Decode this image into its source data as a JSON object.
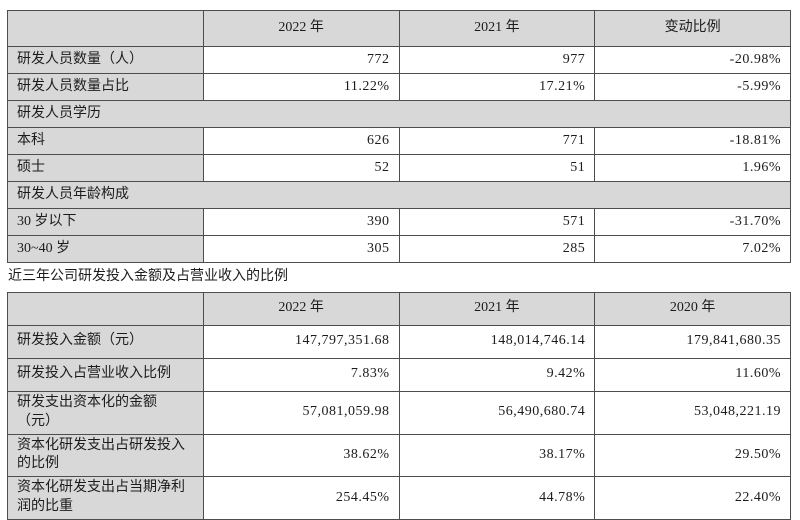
{
  "mid_title": "近三年公司研发投入金额及占营业收入的比例",
  "personnel_table": {
    "headers": [
      "",
      "2022 年",
      "2021 年",
      "变动比例"
    ],
    "rows": [
      {
        "label": "研发人员数量（人）",
        "y2022": "772",
        "y2021": "977",
        "change": "-20.98%"
      },
      {
        "label": "研发人员数量占比",
        "y2022": "11.22%",
        "y2021": "17.21%",
        "change": "-5.99%"
      },
      {
        "label": "研发人员学历"
      },
      {
        "label": "本科",
        "y2022": "626",
        "y2021": "771",
        "change": "-18.81%"
      },
      {
        "label": "硕士",
        "y2022": "52",
        "y2021": "51",
        "change": "1.96%"
      },
      {
        "label": "研发人员年龄构成"
      },
      {
        "label": "30 岁以下",
        "y2022": "390",
        "y2021": "571",
        "change": "-31.70%"
      },
      {
        "label": "30~40 岁",
        "y2022": "305",
        "y2021": "285",
        "change": "7.02%"
      }
    ]
  },
  "investment_table": {
    "headers": [
      "",
      "2022 年",
      "2021 年",
      "2020 年"
    ],
    "rows": [
      {
        "label": "研发投入金额（元）",
        "y2022": "147,797,351.68",
        "y2021": "148,014,746.14",
        "y2020": "179,841,680.35"
      },
      {
        "label": "研发投入占营业收入比例",
        "y2022": "7.83%",
        "y2021": "9.42%",
        "y2020": "11.60%"
      },
      {
        "label": "研发支出资本化的金额\n（元）",
        "y2022": "57,081,059.98",
        "y2021": "56,490,680.74",
        "y2020": "53,048,221.19"
      },
      {
        "label": "资本化研发支出占研发投入\n的比例",
        "y2022": "38.62%",
        "y2021": "38.17%",
        "y2020": "29.50%"
      },
      {
        "label": "资本化研发支出占当期净利\n润的比重",
        "y2022": "254.45%",
        "y2021": "44.78%",
        "y2020": "22.40%"
      }
    ]
  }
}
